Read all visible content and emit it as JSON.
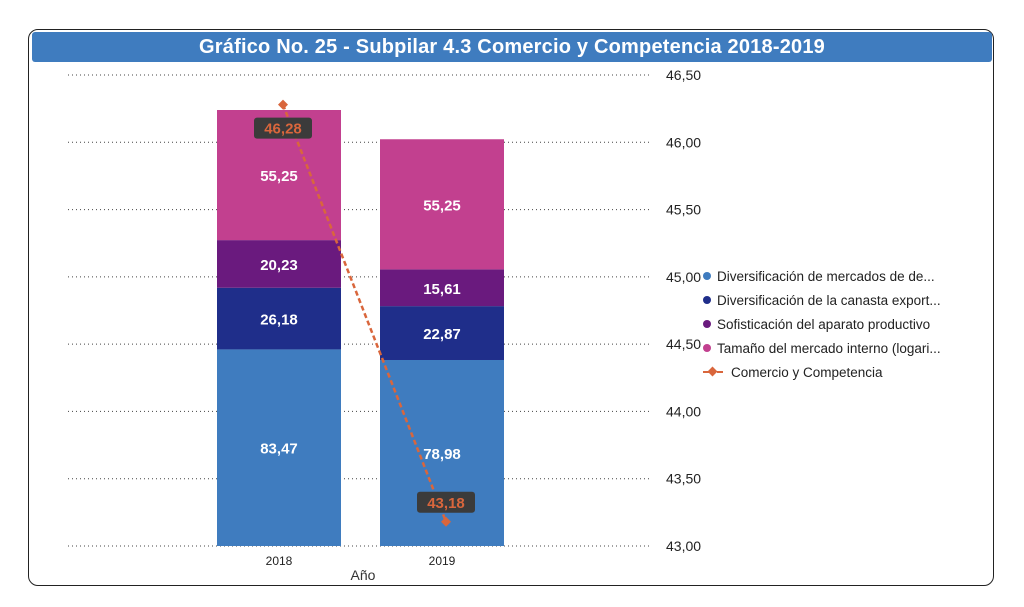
{
  "chart_data": {
    "type": "bar",
    "title": "Gráfico No. 25 - Subpilar 4.3 Comercio y Competencia 2018-2019",
    "xlabel": "Año",
    "categories": [
      "2018",
      "2019"
    ],
    "stacked": true,
    "series": [
      {
        "name": "Diversificación de mercados de de...",
        "values": [
          83.47,
          78.98
        ],
        "color": "#3f7cbf",
        "labels": [
          "83,47",
          "78,98"
        ]
      },
      {
        "name": "Diversificación de la canasta export...",
        "values": [
          26.18,
          22.87
        ],
        "color": "#1f2e8a",
        "labels": [
          "26,18",
          "22,87"
        ]
      },
      {
        "name": "Sofisticación del aparato productivo",
        "values": [
          20.23,
          15.61
        ],
        "color": "#6a1a7e",
        "labels": [
          "20,23",
          "15,61"
        ]
      },
      {
        "name": "Tamaño del mercado interno (logari...",
        "values": [
          55.25,
          55.25
        ],
        "color": "#c2408f",
        "labels": [
          "55,25",
          "55,25"
        ]
      }
    ],
    "line_series": {
      "name": "Comercio y Competencia",
      "values": [
        46.28,
        43.18
      ],
      "labels": [
        "46,28",
        "43,18"
      ],
      "color": "#d9663c",
      "axis": "right"
    },
    "y_right": {
      "min": 43.0,
      "max": 46.5,
      "ticks": [
        43.0,
        43.5,
        44.0,
        44.5,
        45.0,
        45.5,
        46.0,
        46.5
      ],
      "tick_labels": [
        "43,00",
        "43,50",
        "44,00",
        "44,50",
        "45,00",
        "45,50",
        "46,00",
        "46,50"
      ]
    },
    "legend_position": "right",
    "grid": true
  }
}
